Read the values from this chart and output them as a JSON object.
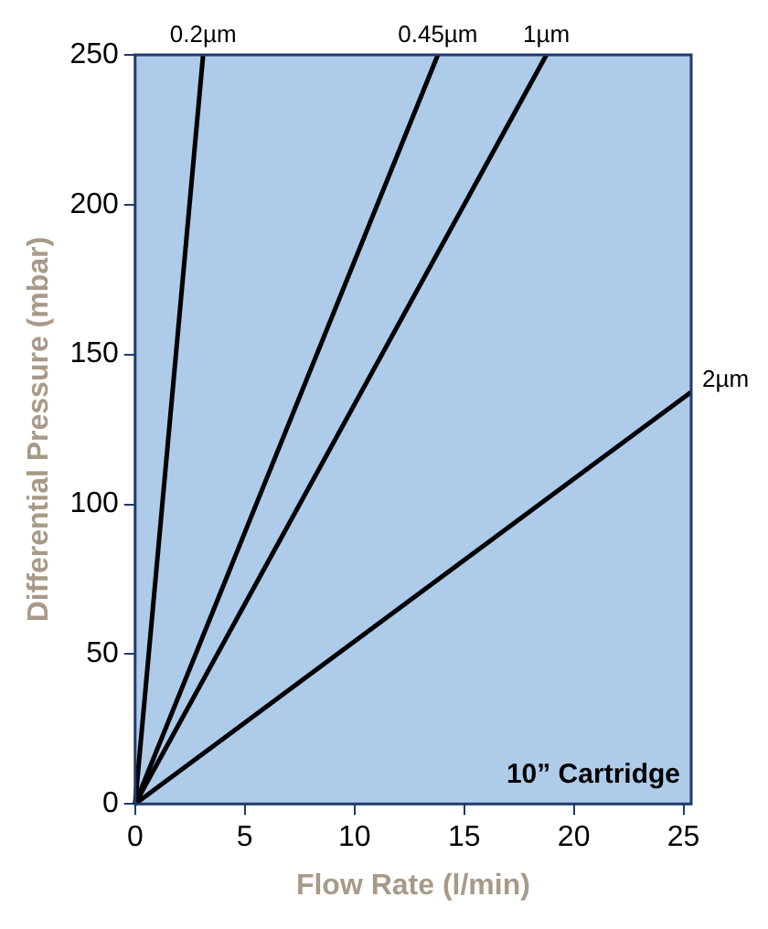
{
  "chart_data": {
    "type": "line",
    "xlabel": "Flow Rate (l/min)",
    "ylabel": "Differential Pressure (mbar)",
    "xlim": [
      0,
      25.35
    ],
    "ylim": [
      0,
      250
    ],
    "xticks": [
      0,
      5,
      10,
      15,
      20,
      25
    ],
    "yticks": [
      0,
      50,
      100,
      150,
      200,
      250
    ],
    "grid": false,
    "legend": false,
    "marker": "none",
    "line_style": "solid",
    "annotations": [
      "10” Cartridge"
    ],
    "series": [
      {
        "name": "0.2µm",
        "color": "#000000",
        "x": [
          0,
          3.1
        ],
        "values": [
          0,
          250
        ]
      },
      {
        "name": "0.45µm",
        "color": "#000000",
        "x": [
          0,
          13.8
        ],
        "values": [
          0,
          250
        ]
      },
      {
        "name": "1µm",
        "color": "#000000",
        "x": [
          0,
          18.75
        ],
        "values": [
          0,
          250
        ]
      },
      {
        "name": "2µm",
        "color": "#000000",
        "x": [
          0,
          25.35
        ],
        "values": [
          0,
          137.5
        ]
      }
    ]
  }
}
